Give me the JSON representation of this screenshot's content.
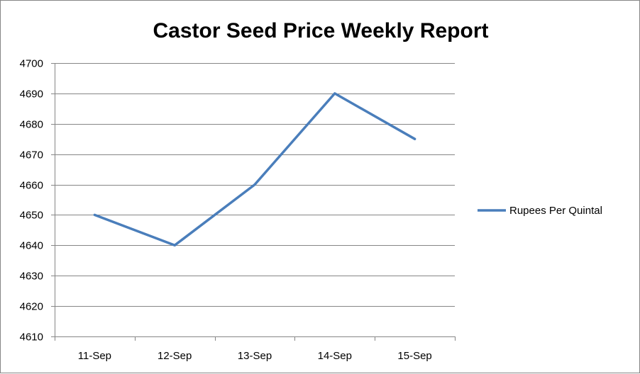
{
  "chart_data": {
    "type": "line",
    "title": "Castor Seed Price Weekly Report",
    "categories": [
      "11-Sep",
      "12-Sep",
      "13-Sep",
      "14-Sep",
      "15-Sep"
    ],
    "series": [
      {
        "name": "Rupees Per Quintal",
        "values": [
          4650,
          4640,
          4660,
          4690,
          4675
        ],
        "color": "#4a7ebb"
      }
    ],
    "ylim": [
      4610,
      4700
    ],
    "yticks": [
      4610,
      4620,
      4630,
      4640,
      4650,
      4660,
      4670,
      4680,
      4690,
      4700
    ],
    "grid": true,
    "legend_position": "right"
  },
  "colors": {
    "gridline": "#868686",
    "axis": "#868686",
    "border": "#868686"
  }
}
